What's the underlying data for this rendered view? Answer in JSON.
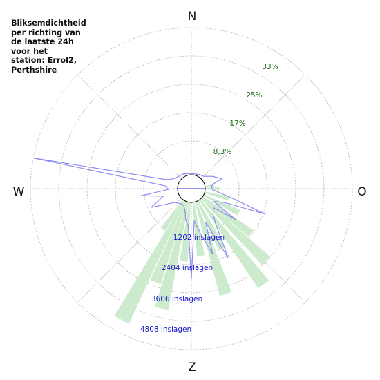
{
  "title": "Bliksemdichtheid\nper richting van\nde laatste 24h\nvoor het\nstation: Errol2,\nPerthshire",
  "compass": {
    "north": "N",
    "east": "O",
    "south": "Z",
    "west": "W"
  },
  "percent_labels": [
    "8,3%",
    "17%",
    "25%",
    "33%"
  ],
  "count_labels": [
    "1202 inslagen",
    "2404 inslagen",
    "3606 inslagen",
    "4808 inslagen"
  ],
  "colors": {
    "wedge_fill": "#ccebcc",
    "polyline": "#8c8cf0",
    "grid": "#b4b4b4",
    "percent_text": "#1f6e1f",
    "count_text": "#1a1acc"
  },
  "chart_data": {
    "type": "polar",
    "title": "Bliksemdichtheid per richting van de laatste 24h voor het station: Errol2, Perthshire",
    "direction_axis": "bearing in degrees, 0 = N, clockwise",
    "percent_ticks": [
      "8,3%",
      "17%",
      "25%",
      "33%"
    ],
    "count_ticks": [
      1202,
      2404,
      3606,
      4808
    ],
    "grid": true,
    "series": [
      {
        "kind": "bars",
        "unit": "percent",
        "values": [
          {
            "dir": 82,
            "value": 2.5
          },
          {
            "dir": 90,
            "value": 4.0
          },
          {
            "dir": 105,
            "value": 7.0
          },
          {
            "dir": 117,
            "value": 11.0
          },
          {
            "dir": 127,
            "value": 17.0
          },
          {
            "dir": 134,
            "value": 25.0
          },
          {
            "dir": 143,
            "value": 29.5
          },
          {
            "dir": 153,
            "value": 15.0
          },
          {
            "dir": 162,
            "value": 27.0
          },
          {
            "dir": 172,
            "value": 15.0
          },
          {
            "dir": 186,
            "value": 16.5
          },
          {
            "dir": 194,
            "value": 30.5
          },
          {
            "dir": 201,
            "value": 24.0
          },
          {
            "dir": 208,
            "value": 37.5
          },
          {
            "dir": 215,
            "value": 10.0
          }
        ]
      },
      {
        "kind": "line",
        "unit": "inslagen",
        "points": [
          {
            "dir": 0,
            "value": 40
          },
          {
            "dir": 30,
            "value": 80
          },
          {
            "dir": 45,
            "value": 120
          },
          {
            "dir": 60,
            "value": 350
          },
          {
            "dir": 72,
            "value": 600
          },
          {
            "dir": 78,
            "value": 280
          },
          {
            "dir": 85,
            "value": 200
          },
          {
            "dir": 93,
            "value": 250
          },
          {
            "dir": 103,
            "value": 900
          },
          {
            "dir": 109,
            "value": 2100
          },
          {
            "dir": 113,
            "value": 700
          },
          {
            "dir": 120,
            "value": 400
          },
          {
            "dir": 125,
            "value": 1300
          },
          {
            "dir": 131,
            "value": 500
          },
          {
            "dir": 140,
            "value": 650
          },
          {
            "dir": 146,
            "value": 1000
          },
          {
            "dir": 152,
            "value": 2100
          },
          {
            "dir": 157,
            "value": 750
          },
          {
            "dir": 162,
            "value": 1800
          },
          {
            "dir": 168,
            "value": 1100
          },
          {
            "dir": 175,
            "value": 600
          },
          {
            "dir": 180,
            "value": 2500
          },
          {
            "dir": 185,
            "value": 750
          },
          {
            "dir": 190,
            "value": 600
          },
          {
            "dir": 196,
            "value": 300
          },
          {
            "dir": 205,
            "value": 150
          },
          {
            "dir": 215,
            "value": 150
          },
          {
            "dir": 230,
            "value": 250
          },
          {
            "dir": 245,
            "value": 1000
          },
          {
            "dir": 255,
            "value": 500
          },
          {
            "dir": 262,
            "value": 1200
          },
          {
            "dir": 268,
            "value": 300
          },
          {
            "dir": 276,
            "value": 400
          },
          {
            "dir": 281,
            "value": 4800
          },
          {
            "dir": 290,
            "value": 400
          },
          {
            "dir": 300,
            "value": 200
          },
          {
            "dir": 330,
            "value": 100
          },
          {
            "dir": 350,
            "value": 50
          }
        ]
      }
    ]
  }
}
